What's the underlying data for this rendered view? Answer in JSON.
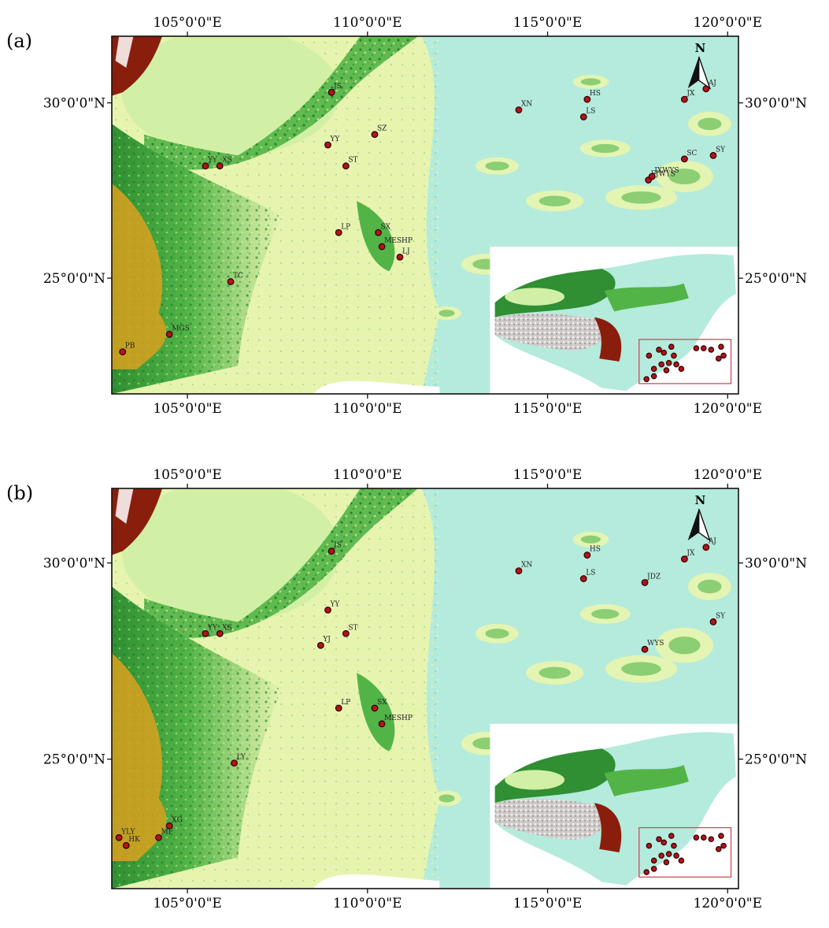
{
  "figure": {
    "panels": [
      {
        "letter": "(a)",
        "top_ticks": [
          "105°0'0\"E",
          "110°0'0\"E",
          "115°0'0\"E",
          "120°0'0\"E"
        ],
        "bottom_ticks": [
          "105°0'0\"E",
          "110°0'0\"E",
          "115°0'0\"E",
          "120°0'0\"E"
        ],
        "left_ticks": [
          "30°0'0\"N",
          "25°0'0\"N"
        ],
        "right_ticks": [
          "30°0'0\"N",
          "25°0'0\"N"
        ],
        "north_label": "N",
        "sites": [
          {
            "label": "JS",
            "lon": 109.0,
            "lat": 30.3
          },
          {
            "label": "XN",
            "lon": 114.2,
            "lat": 29.8
          },
          {
            "label": "HS",
            "lon": 116.1,
            "lat": 30.1
          },
          {
            "label": "LS",
            "lon": 116.0,
            "lat": 29.6
          },
          {
            "label": "JX",
            "lon": 118.8,
            "lat": 30.1
          },
          {
            "label": "AJ",
            "lon": 119.4,
            "lat": 30.4
          },
          {
            "label": "YY",
            "lon": 105.5,
            "lat": 28.2
          },
          {
            "label": "XS",
            "lon": 105.9,
            "lat": 28.2
          },
          {
            "label": "YY",
            "lon": 108.9,
            "lat": 28.8
          },
          {
            "label": "SZ",
            "lon": 110.2,
            "lat": 29.1
          },
          {
            "label": "ST",
            "lon": 109.4,
            "lat": 28.2
          },
          {
            "label": "SC",
            "lon": 118.8,
            "lat": 28.4
          },
          {
            "label": "SY",
            "lon": 119.6,
            "lat": 28.5
          },
          {
            "label": "FJWYS",
            "lon": 117.8,
            "lat": 27.8
          },
          {
            "label": "JXWYS",
            "lon": 117.9,
            "lat": 27.9
          },
          {
            "label": "LP",
            "lon": 109.2,
            "lat": 26.3
          },
          {
            "label": "SX",
            "lon": 110.3,
            "lat": 26.3
          },
          {
            "label": "MESHP",
            "lon": 110.4,
            "lat": 25.9
          },
          {
            "label": "LJ",
            "lon": 110.9,
            "lat": 25.6
          },
          {
            "label": "TC",
            "lon": 106.2,
            "lat": 24.9
          },
          {
            "label": "MGS",
            "lon": 104.5,
            "lat": 23.4
          },
          {
            "label": "PB",
            "lon": 103.2,
            "lat": 22.9
          }
        ]
      },
      {
        "letter": "(b)",
        "top_ticks": [
          "105°0'0\"E",
          "110°0'0\"E",
          "115°0'0\"E",
          "120°0'0\"E"
        ],
        "bottom_ticks": [
          "105°0'0\"E",
          "110°0'0\"E",
          "115°0'0\"E",
          "120°0'0\"E"
        ],
        "left_ticks": [
          "30°0'0\"N",
          "25°0'0\"N"
        ],
        "right_ticks": [
          "30°0'0\"N",
          "25°0'0\"N"
        ],
        "north_label": "N",
        "sites": [
          {
            "label": "JS",
            "lon": 109.0,
            "lat": 30.3
          },
          {
            "label": "XN",
            "lon": 114.2,
            "lat": 29.8
          },
          {
            "label": "HS",
            "lon": 116.1,
            "lat": 30.2
          },
          {
            "label": "LS",
            "lon": 116.0,
            "lat": 29.6
          },
          {
            "label": "JDZ",
            "lon": 117.7,
            "lat": 29.5
          },
          {
            "label": "JX",
            "lon": 118.8,
            "lat": 30.1
          },
          {
            "label": "AJ",
            "lon": 119.4,
            "lat": 30.4
          },
          {
            "label": "YY",
            "lon": 105.5,
            "lat": 28.2
          },
          {
            "label": "XS",
            "lon": 105.9,
            "lat": 28.2
          },
          {
            "label": "YY",
            "lon": 108.9,
            "lat": 28.8
          },
          {
            "label": "YJ",
            "lon": 108.7,
            "lat": 27.9
          },
          {
            "label": "ST",
            "lon": 109.4,
            "lat": 28.2
          },
          {
            "label": "SY",
            "lon": 119.6,
            "lat": 28.5
          },
          {
            "label": "WYS",
            "lon": 117.7,
            "lat": 27.8
          },
          {
            "label": "LP",
            "lon": 109.2,
            "lat": 26.3
          },
          {
            "label": "SX",
            "lon": 110.2,
            "lat": 26.3
          },
          {
            "label": "MESHP",
            "lon": 110.4,
            "lat": 25.9
          },
          {
            "label": "LY",
            "lon": 106.3,
            "lat": 24.9
          },
          {
            "label": "XG",
            "lon": 104.5,
            "lat": 23.3
          },
          {
            "label": "YLY",
            "lon": 103.1,
            "lat": 23.0
          },
          {
            "label": "HK",
            "lon": 103.3,
            "lat": 22.8
          },
          {
            "label": "MF",
            "lon": 104.2,
            "lat": 23.0
          }
        ]
      }
    ]
  },
  "colors": {
    "low_plain": "#b4ebdc",
    "lowland": "#e6f4b0",
    "basin": "#d2f0a5",
    "hills": "#52b447",
    "dark_green": "#217c2b",
    "high": "#d9a11f",
    "peak": "#8a1e0c",
    "site_marker": "#b5121b",
    "inset_box": "#d14a58"
  },
  "map_extent": {
    "lon": [
      102.9,
      120.3
    ],
    "lat": [
      21.7,
      31.9
    ]
  }
}
